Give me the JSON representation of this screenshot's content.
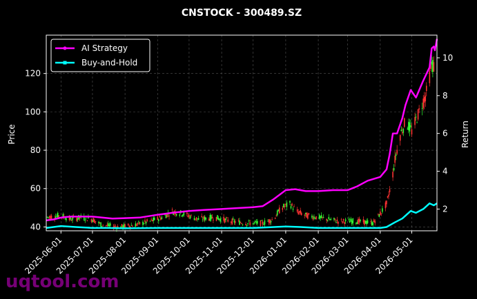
{
  "chart_data": {
    "type": "line",
    "title": "CNSTOCK - 300489.SZ",
    "xlabel": "",
    "ylabel": "Price",
    "y2label": "Return",
    "x_tick_labels": [
      "2025-06-01",
      "2025-07-01",
      "2025-08-01",
      "2025-09-01",
      "2025-10-01",
      "2025-11-01",
      "2025-12-01",
      "2026-01-01",
      "2026-02-01",
      "2026-03-01",
      "2026-04-01",
      "2026-05-01"
    ],
    "xlim": [
      "2025-05-18",
      "2026-05-25"
    ],
    "ylim": [
      38,
      140
    ],
    "y_ticks": [
      40,
      60,
      80,
      100,
      120
    ],
    "y2lim": [
      0.85,
      11.2
    ],
    "y2_ticks": [
      2,
      4,
      6,
      8,
      10
    ],
    "grid": true,
    "legend_position": "top-left",
    "watermark": "uqtool.com",
    "colors": {
      "ai": "#ff00ff",
      "bh": "#00ffff",
      "up": "#33ff33",
      "down": "#ff3333"
    },
    "series": [
      {
        "name": "AI Strategy",
        "axis": "return",
        "points": [
          [
            "2025-05-18",
            1.4
          ],
          [
            "2025-05-25",
            1.45
          ],
          [
            "2025-06-01",
            1.55
          ],
          [
            "2025-06-10",
            1.6
          ],
          [
            "2025-06-20",
            1.6
          ],
          [
            "2025-07-01",
            1.6
          ],
          [
            "2025-07-10",
            1.55
          ],
          [
            "2025-07-20",
            1.5
          ],
          [
            "2025-08-01",
            1.52
          ],
          [
            "2025-08-15",
            1.55
          ],
          [
            "2025-09-01",
            1.7
          ],
          [
            "2025-09-15",
            1.8
          ],
          [
            "2025-10-01",
            1.9
          ],
          [
            "2025-10-15",
            1.95
          ],
          [
            "2025-11-01",
            2.0
          ],
          [
            "2025-11-15",
            2.05
          ],
          [
            "2025-12-01",
            2.1
          ],
          [
            "2025-12-10",
            2.15
          ],
          [
            "2025-12-20",
            2.5
          ],
          [
            "2026-01-01",
            3.0
          ],
          [
            "2026-01-10",
            3.05
          ],
          [
            "2026-01-20",
            2.95
          ],
          [
            "2026-02-01",
            2.95
          ],
          [
            "2026-02-15",
            3.0
          ],
          [
            "2026-03-01",
            3.0
          ],
          [
            "2026-03-10",
            3.2
          ],
          [
            "2026-03-20",
            3.5
          ],
          [
            "2026-04-01",
            3.7
          ],
          [
            "2026-04-07",
            4.1
          ],
          [
            "2026-04-10",
            4.9
          ],
          [
            "2026-04-13",
            6.0
          ],
          [
            "2026-04-17",
            6.0
          ],
          [
            "2026-04-22",
            6.8
          ],
          [
            "2026-04-25",
            7.5
          ],
          [
            "2026-04-30",
            8.3
          ],
          [
            "2026-05-05",
            7.9
          ],
          [
            "2026-05-12",
            8.8
          ],
          [
            "2026-05-18",
            9.5
          ],
          [
            "2026-05-20",
            10.5
          ],
          [
            "2026-05-22",
            10.6
          ],
          [
            "2026-05-23",
            10.4
          ],
          [
            "2026-05-25",
            11.0
          ]
        ]
      },
      {
        "name": "Buy-and-Hold",
        "axis": "return",
        "points": [
          [
            "2025-05-18",
            1.0
          ],
          [
            "2025-06-01",
            1.1
          ],
          [
            "2025-06-15",
            1.05
          ],
          [
            "2025-07-01",
            1.0
          ],
          [
            "2025-07-15",
            1.0
          ],
          [
            "2025-08-01",
            0.98
          ],
          [
            "2025-09-01",
            1.0
          ],
          [
            "2025-10-01",
            1.0
          ],
          [
            "2025-11-01",
            1.0
          ],
          [
            "2025-12-01",
            1.0
          ],
          [
            "2026-01-01",
            1.08
          ],
          [
            "2026-01-15",
            1.05
          ],
          [
            "2026-02-01",
            1.0
          ],
          [
            "2026-03-01",
            1.0
          ],
          [
            "2026-04-01",
            1.0
          ],
          [
            "2026-04-07",
            1.05
          ],
          [
            "2026-04-15",
            1.3
          ],
          [
            "2026-04-22",
            1.5
          ],
          [
            "2026-04-30",
            1.9
          ],
          [
            "2026-05-05",
            1.8
          ],
          [
            "2026-05-12",
            2.0
          ],
          [
            "2026-05-18",
            2.3
          ],
          [
            "2026-05-22",
            2.2
          ],
          [
            "2026-05-25",
            2.3
          ]
        ]
      }
    ],
    "price_path": [
      [
        "2025-05-18",
        45
      ],
      [
        "2025-06-01",
        46
      ],
      [
        "2025-06-10",
        44
      ],
      [
        "2025-06-20",
        45
      ],
      [
        "2025-07-01",
        44
      ],
      [
        "2025-07-10",
        41
      ],
      [
        "2025-07-25",
        40
      ],
      [
        "2025-08-10",
        41
      ],
      [
        "2025-08-25",
        43
      ],
      [
        "2025-09-05",
        45
      ],
      [
        "2025-09-15",
        48
      ],
      [
        "2025-09-25",
        47
      ],
      [
        "2025-10-10",
        44
      ],
      [
        "2025-10-25",
        45
      ],
      [
        "2025-11-10",
        43
      ],
      [
        "2025-11-25",
        42
      ],
      [
        "2025-12-10",
        42
      ],
      [
        "2025-12-20",
        44
      ],
      [
        "2025-12-28",
        50
      ],
      [
        "2026-01-05",
        52
      ],
      [
        "2026-01-12",
        48
      ],
      [
        "2026-01-20",
        46
      ],
      [
        "2026-02-01",
        45
      ],
      [
        "2026-02-20",
        43
      ],
      [
        "2026-03-10",
        43
      ],
      [
        "2026-03-25",
        42
      ],
      [
        "2026-04-01",
        47
      ],
      [
        "2026-04-07",
        52
      ],
      [
        "2026-04-12",
        64
      ],
      [
        "2026-04-15",
        75
      ],
      [
        "2026-04-20",
        88
      ],
      [
        "2026-04-25",
        95
      ],
      [
        "2026-05-01",
        90
      ],
      [
        "2026-05-08",
        100
      ],
      [
        "2026-05-15",
        110
      ],
      [
        "2026-05-20",
        125
      ],
      [
        "2026-05-25",
        122
      ]
    ]
  }
}
